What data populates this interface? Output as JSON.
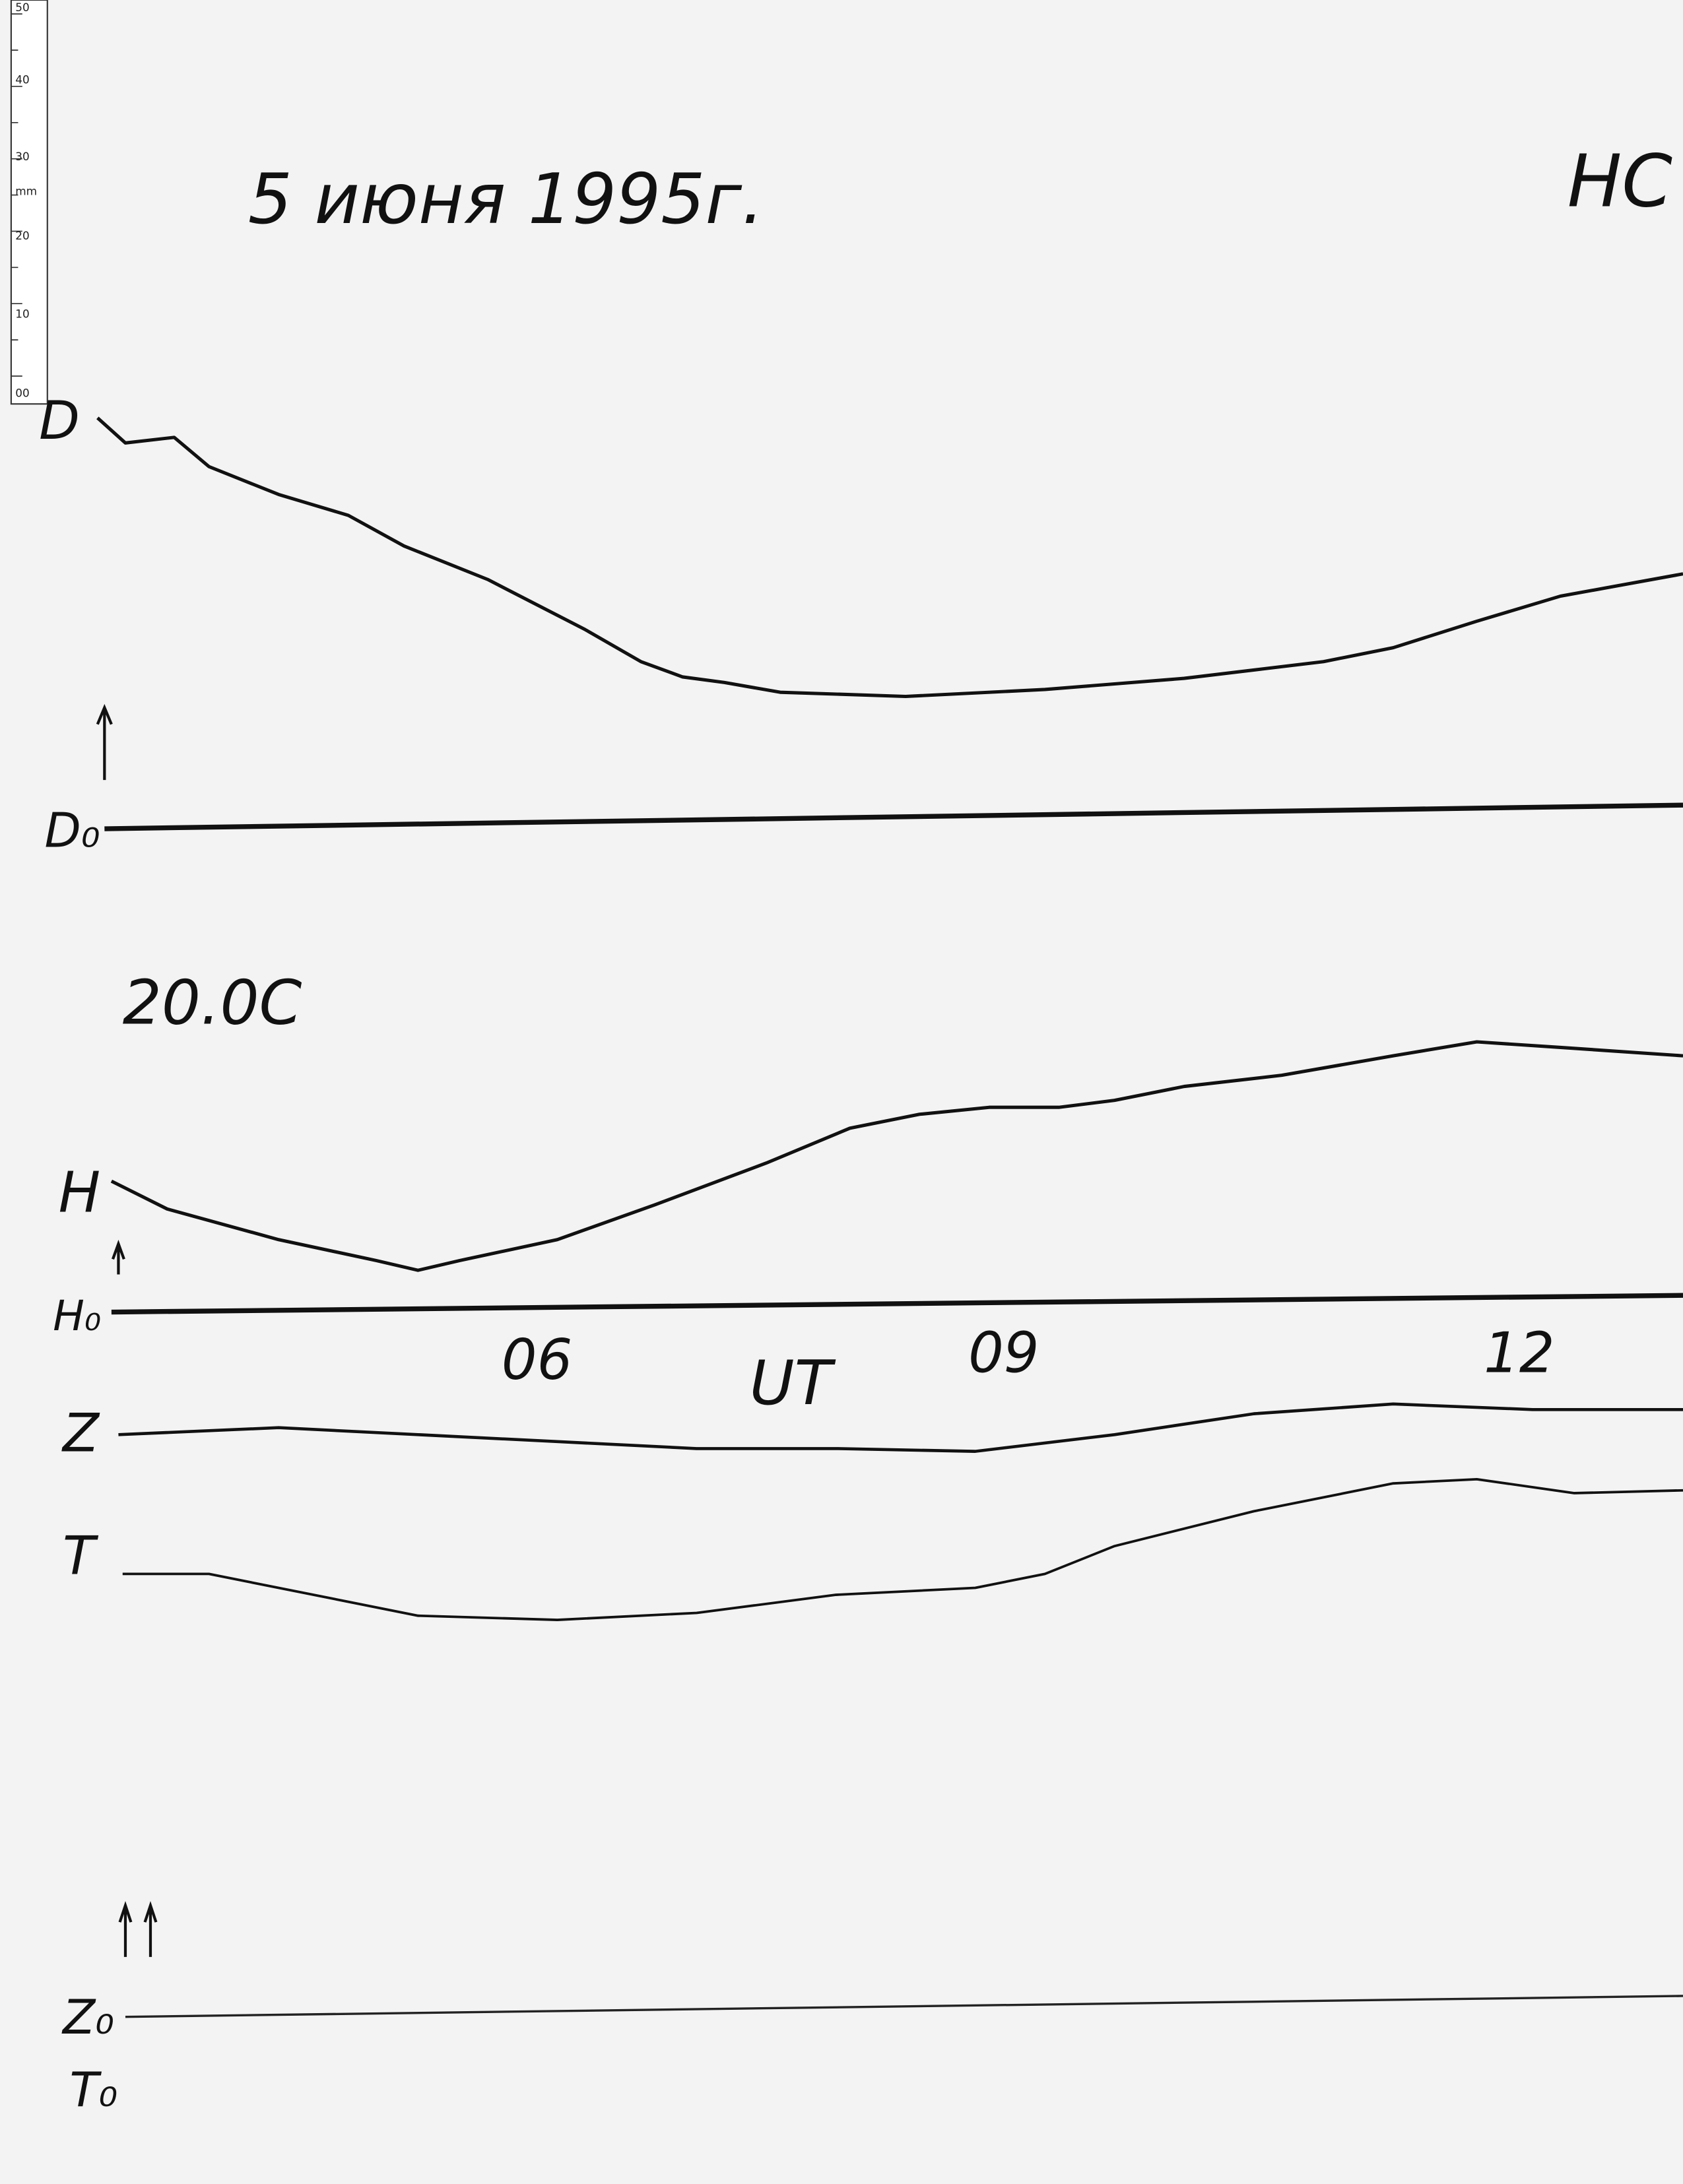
{
  "ruler": {
    "labels": [
      "50",
      "40",
      "30",
      "20",
      "10",
      "00"
    ],
    "unit": "mm"
  },
  "header": {
    "date": "5 июня 1995г.",
    "station": "HC",
    "temperature": "20.0C"
  },
  "traces": {
    "d": {
      "label": "D",
      "baseline": "D₀"
    },
    "h": {
      "label": "H",
      "baseline": "H₀"
    },
    "z": {
      "label": "Z",
      "baseline": "Z₀"
    },
    "t": {
      "label": "T",
      "baseline": "T₀"
    }
  },
  "time_axis": {
    "name": "UT",
    "hours": [
      "06",
      "09",
      "12"
    ]
  }
}
